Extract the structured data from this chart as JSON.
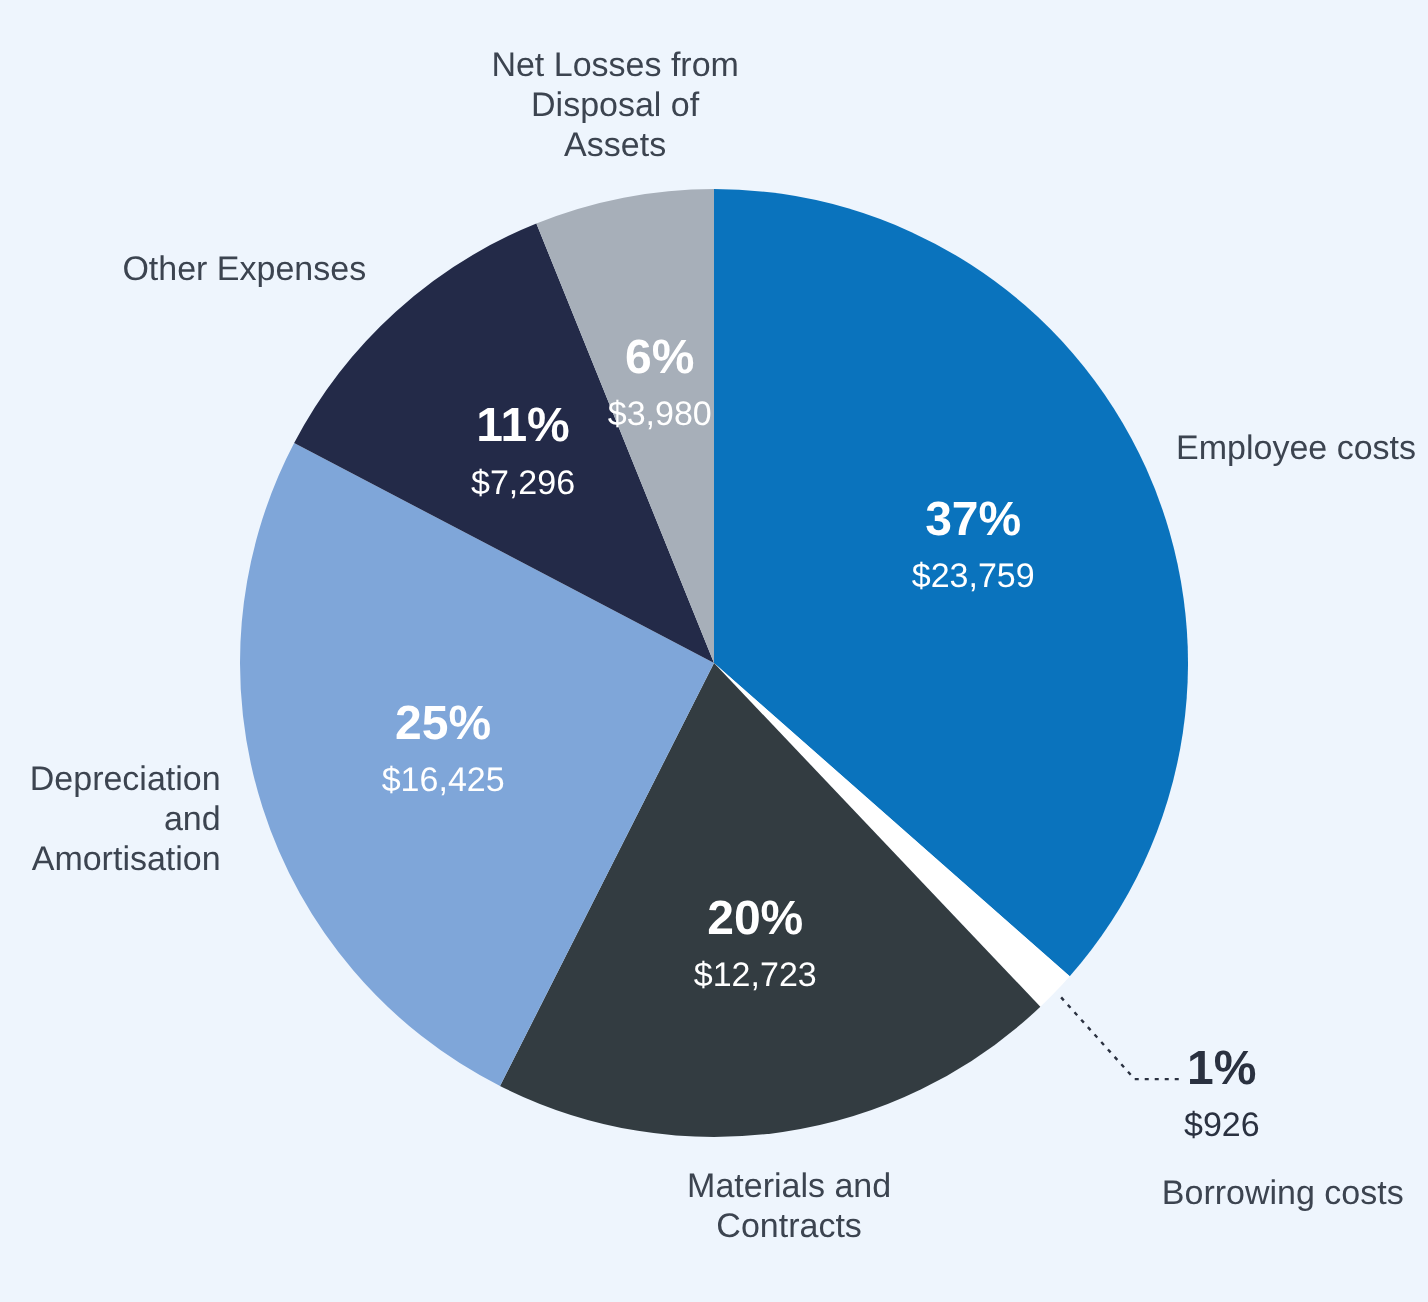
{
  "chart_data": {
    "type": "pie",
    "categories": [
      "Employee costs",
      "Borrowing costs",
      "Materials and Contracts",
      "Depreciation and Amortisation",
      "Other Expenses",
      "Net Losses from Disposal of Assets"
    ],
    "values": [
      23759,
      926,
      12723,
      16425,
      7296,
      3980
    ],
    "colors": [
      "#0a73bd",
      "#ffffff",
      "#333c41",
      "#7fa6d9",
      "#232a48",
      "#a7afb9"
    ],
    "value_labels": [
      "37%\n$23,759",
      "1%\n$926",
      "20%\n$12,723",
      "25%\n$16,425",
      "11%\n$7,296",
      "6%\n$3,980"
    ],
    "legend": false
  }
}
